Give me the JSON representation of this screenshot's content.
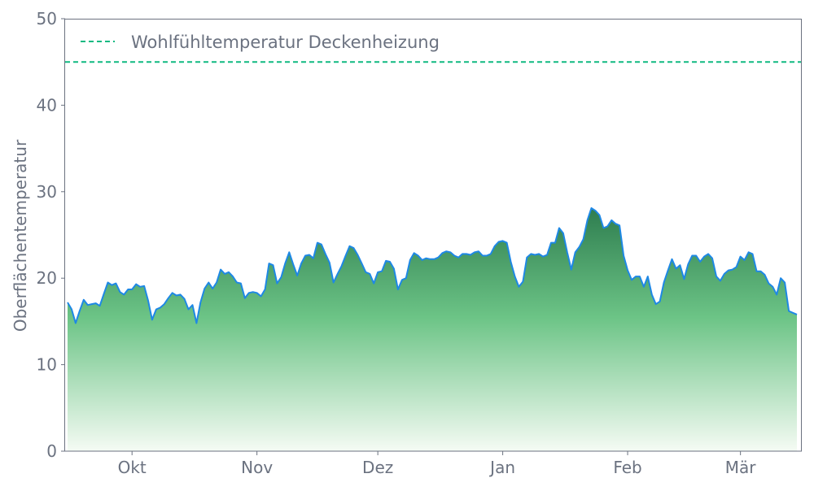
{
  "chart_data": {
    "type": "area",
    "title": "",
    "xlabel": "",
    "ylabel": "Oberflächentemperatur",
    "ylim": [
      0,
      50
    ],
    "yticks": [
      "0",
      "10",
      "20",
      "30",
      "40",
      "50"
    ],
    "xticks": [
      {
        "label": "Okt",
        "month": "10",
        "day": 1
      },
      {
        "label": "Nov",
        "month": "11",
        "day": 1
      },
      {
        "label": "Dez",
        "month": "12",
        "day": 1
      },
      {
        "label": "Jan",
        "month": "01",
        "day": 1
      },
      {
        "label": "Feb",
        "month": "02",
        "day": 1
      },
      {
        "label": "Mär",
        "month": "03",
        "day": 1
      }
    ],
    "grid": false,
    "legend_position": "top-left",
    "reference_line": {
      "name": "Wohlfühltemperatur Deckenheizung",
      "value": 45,
      "style": "dashed",
      "color": "#10b981"
    },
    "series": [
      {
        "color": "#1e88e5",
        "fill_top_color": "#2e7d4f",
        "fill_mid_color": "#6cc486",
        "fill_bottom_color": "#f5fbf4",
        "by_month": [
          {
            "month": "09",
            "first_day": 15,
            "values": [
              17.2,
              16.4,
              14.8,
              16.2,
              17.5,
              16.9,
              17.0,
              17.1,
              16.8,
              18.2,
              19.5,
              19.2,
              19.4,
              18.4,
              18.1,
              18.7
            ]
          },
          {
            "month": "10",
            "first_day": 1,
            "values": [
              18.7,
              19.3,
              19.0,
              19.1,
              17.4,
              15.2,
              16.4,
              16.6,
              17.0,
              17.7,
              18.3,
              18.0,
              18.1,
              17.6,
              16.4,
              16.9,
              14.8,
              17.2,
              18.8,
              19.5,
              18.8,
              19.5,
              21.0,
              20.5,
              20.7,
              20.2,
              19.5,
              19.4,
              17.7,
              18.3,
              18.4
            ]
          },
          {
            "month": "11",
            "first_day": 1,
            "values": [
              18.3,
              17.9,
              18.7,
              21.7,
              21.5,
              19.4,
              20.1,
              21.7,
              23.0,
              21.6,
              20.3,
              21.7,
              22.6,
              22.7,
              22.3,
              24.1,
              23.9,
              22.8,
              21.8,
              19.5,
              20.5,
              21.4,
              22.6,
              23.7,
              23.5,
              22.7,
              21.7,
              20.7,
              20.5,
              19.4
            ]
          },
          {
            "month": "12",
            "first_day": 1,
            "values": [
              20.7,
              20.8,
              22.0,
              21.9,
              21.1,
              18.7,
              19.8,
              20.0,
              22.1,
              22.9,
              22.6,
              22.1,
              22.3,
              22.2,
              22.2,
              22.4,
              22.9,
              23.1,
              23.0,
              22.6,
              22.4,
              22.8,
              22.8,
              22.7,
              23.0,
              23.1,
              22.6,
              22.6,
              22.8,
              23.7,
              24.2
            ]
          },
          {
            "month": "01",
            "first_day": 1,
            "values": [
              24.3,
              24.1,
              21.9,
              20.2,
              19.0,
              19.6,
              22.4,
              22.8,
              22.7,
              22.8,
              22.5,
              22.7,
              24.1,
              24.1,
              25.8,
              25.2,
              23.0,
              21.0,
              23.0,
              23.6,
              24.5,
              26.7,
              28.1,
              27.8,
              27.3,
              25.8,
              26.0,
              26.7,
              26.3,
              26.1,
              22.6
            ]
          },
          {
            "month": "02",
            "first_day": 1,
            "values": [
              20.9,
              19.8,
              20.2,
              20.2,
              19.0,
              20.2,
              18.1,
              17.0,
              17.3,
              19.5,
              20.9,
              22.2,
              21.1,
              21.5,
              19.9,
              21.6,
              22.6,
              22.6,
              21.9,
              22.5,
              22.8,
              22.3,
              20.2,
              19.7,
              20.5,
              20.9,
              21.0,
              21.3
            ]
          },
          {
            "month": "03",
            "first_day": 1,
            "values": [
              22.5,
              22.1,
              23.0,
              22.8,
              20.8,
              20.8,
              20.4,
              19.4,
              19.0,
              18.1,
              20.0,
              19.5,
              16.2,
              16.0,
              15.8
            ]
          }
        ]
      }
    ]
  }
}
